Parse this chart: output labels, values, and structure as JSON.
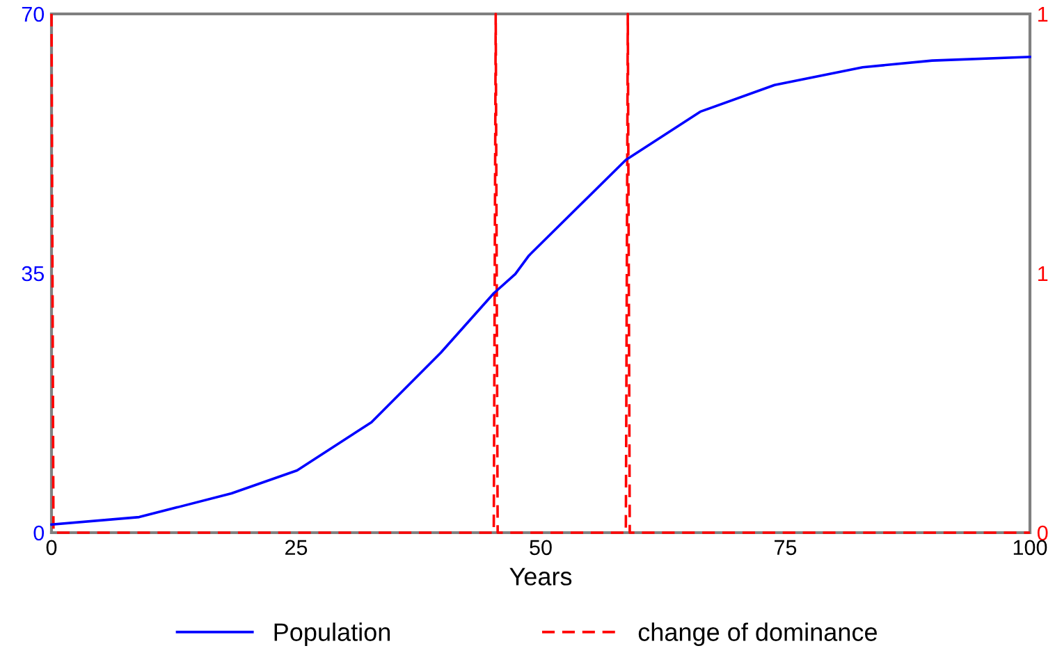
{
  "chart_data": {
    "type": "line",
    "xlabel": "Years",
    "x": [
      0,
      8.96,
      18.4,
      25.1,
      32.7,
      39.8,
      45.2,
      47.4,
      48.8,
      58.7,
      66.3,
      73.9,
      82.9,
      90,
      100
    ],
    "series": [
      {
        "name": "Population",
        "color": "#0000ff",
        "line_style": "solid",
        "values": [
          1.1,
          2.1,
          5.3,
          8.4,
          14.9,
          24.3,
          32.3,
          34.9,
          37.4,
          50.3,
          56.8,
          60.4,
          62.8,
          63.7,
          64.2
        ]
      },
      {
        "name": "change of dominance",
        "color": "#ff0000",
        "line_style": "dashed",
        "axis": "y2",
        "x": [
          0,
          0.2,
          45.2,
          45.4,
          45.6,
          58.7,
          58.9,
          59.1,
          100
        ],
        "values": [
          1,
          0,
          0,
          1,
          0,
          0,
          1,
          0,
          0
        ]
      }
    ],
    "xlim": [
      0,
      100
    ],
    "xticks": [
      0,
      25,
      50,
      75,
      100
    ],
    "ylim": [
      0,
      70
    ],
    "yticks": [
      0,
      35,
      70
    ],
    "y2lim": [
      0,
      1
    ],
    "y2ticks": [
      0,
      {
        "value": 0.5,
        "label": "1"
      },
      1
    ],
    "grid": false,
    "legend": "bottom",
    "marker": "none"
  }
}
